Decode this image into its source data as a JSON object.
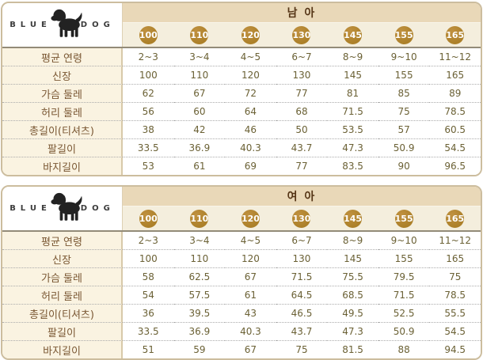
{
  "brand": {
    "name_left": "BLUE",
    "name_right": "DOG",
    "logo_icon": "dog-silhouette"
  },
  "colors": {
    "table_border": "#ccbd9e",
    "title_band_bg": "#e9d8b8",
    "sizes_row_bg": "#f4eedd",
    "label_column_bg": "#faf3e1",
    "size_circle_bg": "#ac8029",
    "size_circle_text": "#ffffff",
    "title_text": "#553516",
    "label_text": "#7a5733",
    "value_text": "#6b6135"
  },
  "tables": [
    {
      "title": "남 아",
      "sizes": [
        "100",
        "110",
        "120",
        "130",
        "145",
        "155",
        "165"
      ],
      "rows": [
        {
          "label": "평균 연령",
          "values": [
            "2~3",
            "3~4",
            "4~5",
            "6~7",
            "8~9",
            "9~10",
            "11~12"
          ]
        },
        {
          "label": "신장",
          "values": [
            "100",
            "110",
            "120",
            "130",
            "145",
            "155",
            "165"
          ]
        },
        {
          "label": "가슴 둘레",
          "values": [
            "62",
            "67",
            "72",
            "77",
            "81",
            "85",
            "89"
          ]
        },
        {
          "label": "허리 둘레",
          "values": [
            "56",
            "60",
            "64",
            "68",
            "71.5",
            "75",
            "78.5"
          ]
        },
        {
          "label": "총길이(티셔츠)",
          "values": [
            "38",
            "42",
            "46",
            "50",
            "53.5",
            "57",
            "60.5"
          ]
        },
        {
          "label": "팔길이",
          "values": [
            "33.5",
            "36.9",
            "40.3",
            "43.7",
            "47.3",
            "50.9",
            "54.5"
          ]
        },
        {
          "label": "바지길이",
          "values": [
            "53",
            "61",
            "69",
            "77",
            "83.5",
            "90",
            "96.5"
          ]
        }
      ]
    },
    {
      "title": "여 아",
      "sizes": [
        "100",
        "110",
        "120",
        "130",
        "145",
        "155",
        "165"
      ],
      "rows": [
        {
          "label": "평균 연령",
          "values": [
            "2~3",
            "3~4",
            "4~5",
            "6~7",
            "8~9",
            "9~10",
            "11~12"
          ]
        },
        {
          "label": "신장",
          "values": [
            "100",
            "110",
            "120",
            "130",
            "145",
            "155",
            "165"
          ]
        },
        {
          "label": "가슴 둘레",
          "values": [
            "58",
            "62.5",
            "67",
            "71.5",
            "75.5",
            "79.5",
            "75"
          ]
        },
        {
          "label": "허리 둘레",
          "values": [
            "54",
            "57.5",
            "61",
            "64.5",
            "68.5",
            "71.5",
            "78.5"
          ]
        },
        {
          "label": "총길이(티셔츠)",
          "values": [
            "36",
            "39.5",
            "43",
            "46.5",
            "49.5",
            "52.5",
            "55.5"
          ]
        },
        {
          "label": "팔길이",
          "values": [
            "33.5",
            "36.9",
            "40.3",
            "43.7",
            "47.3",
            "50.9",
            "54.5"
          ]
        },
        {
          "label": "바지길이",
          "values": [
            "51",
            "59",
            "67",
            "75",
            "81.5",
            "88",
            "94.5"
          ]
        }
      ]
    }
  ],
  "chart_data": [
    {
      "type": "table",
      "title": "남 아 (boys size chart)",
      "column_headers": [
        "100",
        "110",
        "120",
        "130",
        "145",
        "155",
        "165"
      ],
      "row_headers": [
        "평균 연령",
        "신장",
        "가슴 둘레",
        "허리 둘레",
        "총길이(티셔츠)",
        "팔길이",
        "바지길이"
      ],
      "cells": [
        [
          "2~3",
          "3~4",
          "4~5",
          "6~7",
          "8~9",
          "9~10",
          "11~12"
        ],
        [
          100,
          110,
          120,
          130,
          145,
          155,
          165
        ],
        [
          62,
          67,
          72,
          77,
          81,
          85,
          89
        ],
        [
          56,
          60,
          64,
          68,
          71.5,
          75,
          78.5
        ],
        [
          38,
          42,
          46,
          50,
          53.5,
          57,
          60.5
        ],
        [
          33.5,
          36.9,
          40.3,
          43.7,
          47.3,
          50.9,
          54.5
        ],
        [
          53,
          61,
          69,
          77,
          83.5,
          90,
          96.5
        ]
      ]
    },
    {
      "type": "table",
      "title": "여 아 (girls size chart)",
      "column_headers": [
        "100",
        "110",
        "120",
        "130",
        "145",
        "155",
        "165"
      ],
      "row_headers": [
        "평균 연령",
        "신장",
        "가슴 둘레",
        "허리 둘레",
        "총길이(티셔츠)",
        "팔길이",
        "바지길이"
      ],
      "cells": [
        [
          "2~3",
          "3~4",
          "4~5",
          "6~7",
          "8~9",
          "9~10",
          "11~12"
        ],
        [
          100,
          110,
          120,
          130,
          145,
          155,
          165
        ],
        [
          58,
          62.5,
          67,
          71.5,
          75.5,
          79.5,
          75
        ],
        [
          54,
          57.5,
          61,
          64.5,
          68.5,
          71.5,
          78.5
        ],
        [
          36,
          39.5,
          43,
          46.5,
          49.5,
          52.5,
          55.5
        ],
        [
          33.5,
          36.9,
          40.3,
          43.7,
          47.3,
          50.9,
          54.5
        ],
        [
          51,
          59,
          67,
          75,
          81.5,
          88,
          94.5
        ]
      ]
    }
  ]
}
